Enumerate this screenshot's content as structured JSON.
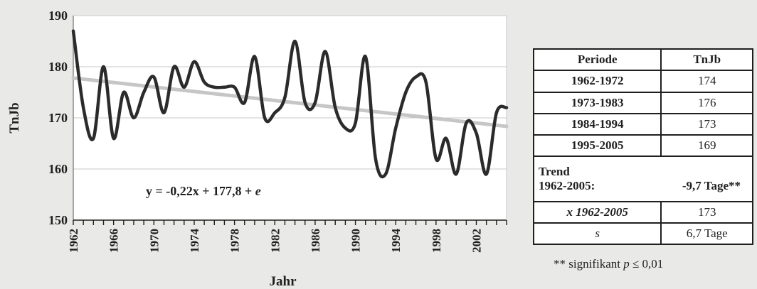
{
  "chart_data": {
    "type": "line",
    "xlabel": "Jahr",
    "ylabel": "TnJb",
    "xlim": [
      1962,
      2005
    ],
    "ylim": [
      150,
      190
    ],
    "x_ticks": [
      "1962",
      "1966",
      "1970",
      "1974",
      "1978",
      "1982",
      "1986",
      "1990",
      "1994",
      "1998",
      "2002"
    ],
    "y_ticks": [
      "150",
      "160",
      "170",
      "180",
      "190"
    ],
    "grid": "horizontal",
    "series": [
      {
        "x": [
          1962,
          1963,
          1964,
          1965,
          1966,
          1967,
          1968,
          1969,
          1970,
          1971,
          1972,
          1973,
          1974,
          1975,
          1976,
          1977,
          1978,
          1979,
          1980,
          1981,
          1982,
          1983,
          1984,
          1985,
          1986,
          1987,
          1988,
          1989,
          1990,
          1991,
          1992,
          1993,
          1994,
          1995,
          1996,
          1997,
          1998,
          1999,
          2000,
          2001,
          2002,
          2003,
          2004,
          2005
        ],
        "y": [
          187,
          172,
          166,
          180,
          166,
          175,
          170,
          175,
          178,
          171,
          180,
          176,
          181,
          177,
          176,
          176,
          176,
          173,
          182,
          170,
          171,
          174,
          185,
          173,
          173,
          183,
          172,
          168,
          169,
          182,
          162,
          159,
          168,
          175,
          178,
          177,
          162,
          166,
          159,
          169,
          167,
          159,
          171,
          172
        ]
      }
    ],
    "trendline": {
      "slope": -0.22,
      "intercept": 177.8,
      "label": "y = -0,22x + 177,8 + e",
      "color": "#c6c6c6"
    },
    "line_color": "#2b2b2b"
  },
  "table": {
    "headers": [
      "Periode",
      "TnJb"
    ],
    "rows": [
      [
        "1962-1972",
        "174"
      ],
      [
        "1973-1983",
        "176"
      ],
      [
        "1984-1994",
        "173"
      ],
      [
        "1995-2005",
        "169"
      ]
    ],
    "trend_label": "Trend",
    "trend_period": "1962-2005:",
    "trend_value": "-9,7 Tage**",
    "mean_label": "x 1962-2005",
    "mean_value": "173",
    "sd_label": "s",
    "sd_value": "6,7 Tage"
  },
  "footnote": {
    "prefix": "** signifikant ",
    "pvar": "p",
    "suffix": " ≤ 0,01"
  }
}
